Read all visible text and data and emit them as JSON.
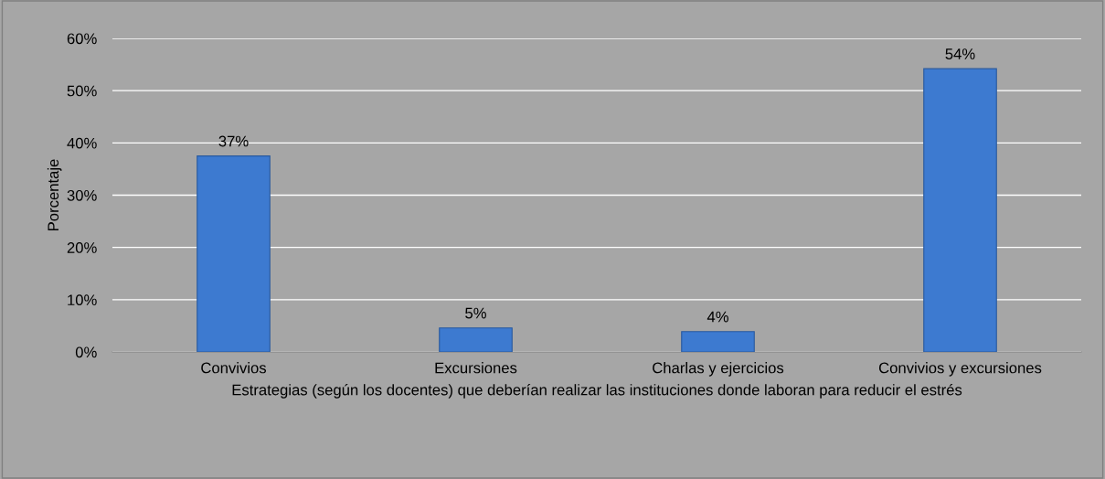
{
  "chart_data": {
    "type": "bar",
    "xlabel": "Estrategias (según los docentes) que deberían realizar las instituciones donde laboran para reducir el estrés",
    "ylabel": "Porcentaje",
    "categories": [
      "Convivios",
      "Excursiones",
      "Charlas y ejercicios",
      "Convivios y excursiones"
    ],
    "values": [
      37.5,
      4.6,
      3.9,
      54.2
    ],
    "value_labels": [
      "37%",
      "5%",
      "4%",
      "54%"
    ],
    "color": "#3d7ad0",
    "ylim": [
      0,
      60
    ],
    "yticks": [
      {
        "value": 0,
        "label": "0%"
      },
      {
        "value": 10,
        "label": "10%"
      },
      {
        "value": 20,
        "label": "20%"
      },
      {
        "value": 30,
        "label": "30%"
      },
      {
        "value": 40,
        "label": "40%"
      },
      {
        "value": 50,
        "label": "50%"
      },
      {
        "value": 60,
        "label": "60%"
      }
    ],
    "grid": "y",
    "legend": false
  }
}
